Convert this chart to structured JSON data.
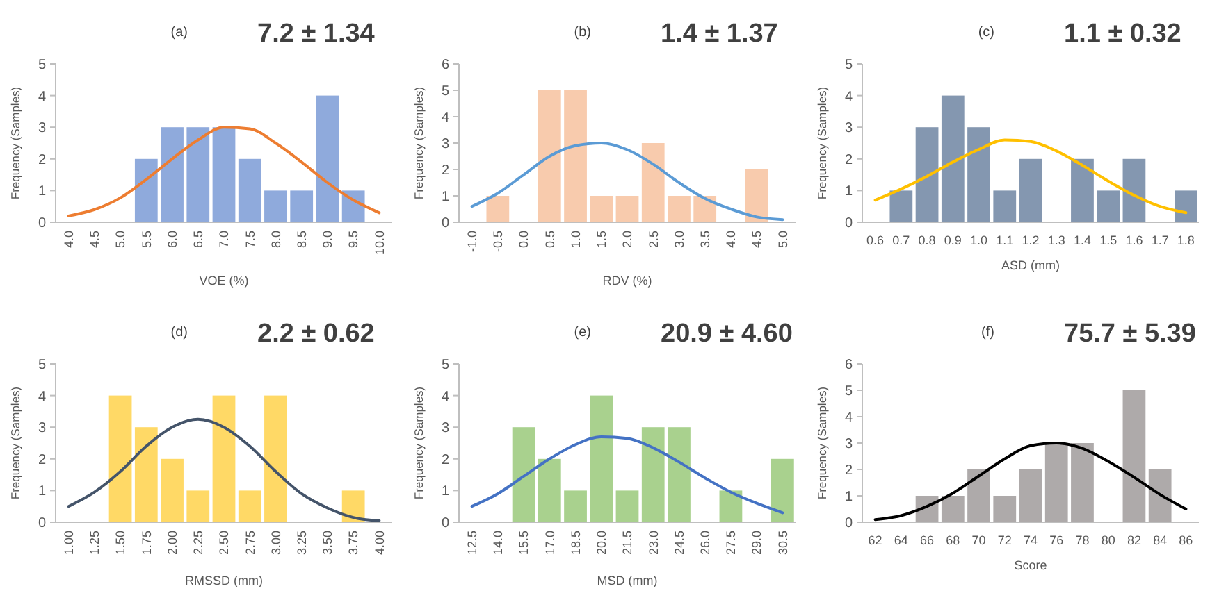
{
  "chart_data": [
    {
      "type": "bar",
      "title": "(a)",
      "subtitle": "7.2 ± 1.34",
      "xlabel": "VOE (%)",
      "ylabel": "Frequency (Samples)",
      "categories": [
        "4.0",
        "4.5",
        "5.0",
        "5.5",
        "6.0",
        "6.5",
        "7.0",
        "7.5",
        "8.0",
        "8.5",
        "9.0",
        "9.5",
        "10.0"
      ],
      "ylim": [
        0,
        5
      ],
      "yticks": [
        0,
        1,
        2,
        3,
        4,
        5
      ],
      "grid": false,
      "series": [
        {
          "color": "#8faadc",
          "values": [
            0,
            0,
            0,
            2,
            3,
            3,
            3,
            2,
            1,
            1,
            4,
            1,
            0
          ]
        },
        {
          "type": "line",
          "color": "#ed7d31",
          "values": [
            0.2,
            0.4,
            0.77,
            1.35,
            2.0,
            2.6,
            3.0,
            2.95,
            2.5,
            1.9,
            1.25,
            0.7,
            0.3
          ]
        }
      ]
    },
    {
      "type": "bar",
      "title": "(b)",
      "subtitle": "1.4 ± 1.37",
      "xlabel": "RDV (%)",
      "ylabel": "Frequency (Samples)",
      "categories": [
        "-1.0",
        "-0.5",
        "0.0",
        "0.5",
        "1.0",
        "1.5",
        "2.0",
        "2.5",
        "3.0",
        "3.5",
        "4.0",
        "4.5",
        "5.0"
      ],
      "ylim": [
        0,
        6
      ],
      "yticks": [
        0,
        1,
        2,
        3,
        4,
        5,
        6
      ],
      "grid": false,
      "series": [
        {
          "color": "#f8cbad",
          "values": [
            0,
            1,
            0,
            5,
            5,
            1,
            1,
            3,
            1,
            1,
            0,
            2,
            0
          ]
        },
        {
          "type": "line",
          "color": "#5b9bd5",
          "values": [
            0.6,
            1.1,
            1.8,
            2.5,
            2.9,
            3.0,
            2.75,
            2.2,
            1.5,
            0.9,
            0.5,
            0.2,
            0.1
          ]
        }
      ]
    },
    {
      "type": "bar",
      "title": "(c)",
      "subtitle": "1.1 ± 0.32",
      "xlabel": "ASD (mm)",
      "ylabel": "Frequency (Samples)",
      "categories": [
        "0.6",
        "0.7",
        "0.8",
        "0.9",
        "1.0",
        "1.1",
        "1.2",
        "1.3",
        "1.4",
        "1.5",
        "1.6",
        "1.7",
        "1.8"
      ],
      "ylim": [
        0,
        5
      ],
      "yticks": [
        0,
        1,
        2,
        3,
        4,
        5
      ],
      "grid": false,
      "series": [
        {
          "color": "#8497b0",
          "values": [
            0,
            1,
            3,
            4,
            3,
            1,
            2,
            0,
            2,
            1,
            2,
            0,
            1
          ]
        },
        {
          "type": "line",
          "color": "#ffc000",
          "values": [
            0.7,
            1.05,
            1.45,
            1.9,
            2.3,
            2.6,
            2.55,
            2.25,
            1.8,
            1.3,
            0.85,
            0.5,
            0.3
          ]
        }
      ]
    },
    {
      "type": "bar",
      "title": "(d)",
      "subtitle": "2.2 ± 0.62",
      "xlabel": "RMSSD (mm)",
      "ylabel": "Frequency (Samples)",
      "categories": [
        "1.00",
        "1.25",
        "1.50",
        "1.75",
        "2.00",
        "2.25",
        "2.50",
        "2.75",
        "3.00",
        "3.25",
        "3.50",
        "3.75",
        "4.00"
      ],
      "ylim": [
        0,
        5
      ],
      "yticks": [
        0,
        1,
        2,
        3,
        4,
        5
      ],
      "grid": false,
      "series": [
        {
          "color": "#ffd966",
          "values": [
            0,
            0,
            4,
            3,
            2,
            1,
            4,
            1,
            4,
            0,
            0,
            1,
            0
          ]
        },
        {
          "type": "line",
          "color": "#44546a",
          "values": [
            0.5,
            0.95,
            1.6,
            2.4,
            3.0,
            3.25,
            3.0,
            2.4,
            1.6,
            0.9,
            0.45,
            0.15,
            0.05
          ]
        }
      ]
    },
    {
      "type": "bar",
      "title": "(e)",
      "subtitle": "20.9 ± 4.60",
      "xlabel": "MSD (mm)",
      "ylabel": "Frequency (Samples)",
      "categories": [
        "12.5",
        "14.0",
        "15.5",
        "17.0",
        "18.5",
        "20.0",
        "21.5",
        "23.0",
        "24.5",
        "26.0",
        "27.5",
        "29.0",
        "30.5"
      ],
      "ylim": [
        0,
        5
      ],
      "yticks": [
        0,
        1,
        2,
        3,
        4,
        5
      ],
      "grid": false,
      "series": [
        {
          "color": "#a9d18e",
          "values": [
            0,
            0,
            3,
            2,
            1,
            4,
            1,
            3,
            3,
            0,
            1,
            0,
            2
          ]
        },
        {
          "type": "line",
          "color": "#4472c4",
          "values": [
            0.5,
            0.9,
            1.45,
            2.0,
            2.45,
            2.7,
            2.65,
            2.35,
            1.9,
            1.4,
            0.95,
            0.6,
            0.3
          ]
        }
      ]
    },
    {
      "type": "bar",
      "title": "(f)",
      "subtitle": "75.7 ± 5.39",
      "xlabel": "Score",
      "ylabel": "Frequency (Samples)",
      "categories": [
        "62",
        "64",
        "66",
        "68",
        "70",
        "72",
        "74",
        "76",
        "78",
        "80",
        "82",
        "84",
        "86"
      ],
      "ylim": [
        0,
        6
      ],
      "yticks": [
        0,
        1,
        2,
        3,
        4,
        5,
        6
      ],
      "grid": false,
      "series": [
        {
          "color": "#aeaaaa",
          "values": [
            0,
            0,
            1,
            1,
            2,
            1,
            2,
            3,
            3,
            0,
            5,
            2,
            0
          ]
        },
        {
          "type": "line",
          "color": "#000000",
          "values": [
            0.1,
            0.25,
            0.6,
            1.1,
            1.75,
            2.4,
            2.9,
            3.0,
            2.8,
            2.3,
            1.7,
            1.05,
            0.5
          ]
        }
      ]
    }
  ]
}
